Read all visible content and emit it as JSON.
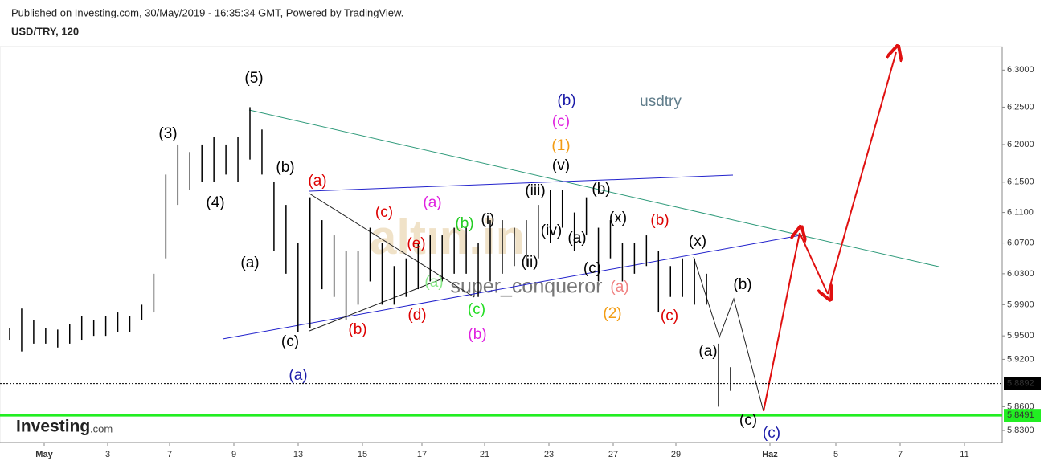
{
  "chart_data": {
    "type": "ohlc",
    "published": "Published on Investing.com, 30/May/2019 - 16:35:34 GMT, Powered by TradingView.",
    "title": "USD/TRY, 120",
    "watermark": "usdtry",
    "author": "super_conqueror",
    "watermark_logo": "altın.in",
    "logo": {
      "brand": "Investing",
      "suffix": ".com"
    },
    "log_scale": true,
    "color": "#000000",
    "categories": [
      "May",
      "3",
      "7",
      "9",
      "13",
      "15",
      "17",
      "21",
      "23",
      "27",
      "29",
      "Haz",
      "5",
      "7",
      "11"
    ],
    "bars": {
      "high": [
        5.96,
        5.985,
        5.97,
        5.96,
        5.958,
        5.965,
        5.975,
        5.97,
        5.975,
        5.98,
        5.975,
        5.99,
        6.03,
        6.16,
        6.2,
        6.19,
        6.2,
        6.21,
        6.2,
        6.21,
        6.25,
        6.22,
        6.15,
        6.12,
        6.07,
        6.13,
        6.1,
        6.08,
        6.06,
        6.06,
        6.09,
        6.07,
        6.04,
        6.05,
        6.07,
        6.08,
        6.08,
        6.09,
        6.09,
        6.07,
        6.1,
        6.1,
        6.09,
        6.1,
        6.12,
        6.14,
        6.14,
        6.11,
        6.13,
        6.09,
        6.1,
        6.07,
        6.07,
        6.08,
        6.06,
        6.04,
        6.05,
        6.05,
        6.03,
        5.94,
        5.91
      ],
      "low": [
        5.945,
        5.93,
        5.94,
        5.94,
        5.935,
        5.94,
        5.945,
        5.95,
        5.95,
        5.955,
        5.955,
        5.97,
        5.98,
        6.05,
        6.12,
        6.14,
        6.15,
        6.15,
        6.16,
        6.15,
        6.18,
        6.16,
        6.06,
        6.03,
        5.955,
        5.96,
        6.01,
        6.0,
        5.97,
        5.99,
        6.02,
        5.99,
        5.99,
        6.0,
        6.01,
        6.02,
        6.02,
        6.03,
        6.03,
        6.0,
        6.02,
        6.03,
        6.04,
        6.04,
        6.05,
        6.07,
        6.09,
        6.06,
        6.08,
        6.02,
        6.05,
        6.02,
        6.03,
        6.04,
        5.98,
        6.0,
        6.0,
        5.99,
        5.99,
        5.86,
        5.88
      ]
    },
    "ylim": [
      5.815,
      6.332
    ],
    "yticks": [
      {
        "value": 6.3,
        "label": "6.3000"
      },
      {
        "value": 6.25,
        "label": "6.2500"
      },
      {
        "value": 6.2,
        "label": "6.2000"
      },
      {
        "value": 6.15,
        "label": "6.1500"
      },
      {
        "value": 6.11,
        "label": "6.1100"
      },
      {
        "value": 6.07,
        "label": "6.0700"
      },
      {
        "value": 6.03,
        "label": "6.0300"
      },
      {
        "value": 5.99,
        "label": "5.9900"
      },
      {
        "value": 5.95,
        "label": "5.9500"
      },
      {
        "value": 5.92,
        "label": "5.9200"
      },
      {
        "value": 5.86,
        "label": "5.8600"
      },
      {
        "value": 5.83,
        "label": "5.8300"
      }
    ],
    "price_lines": [
      {
        "value": 5.8892,
        "color": "#000000"
      },
      {
        "value": 5.8491,
        "color": "#22ee22"
      }
    ],
    "annotations": [
      {
        "text": "(5)",
        "color": "#000000"
      },
      {
        "text": "(3)",
        "color": "#000000"
      },
      {
        "text": "(4)",
        "color": "#000000"
      },
      {
        "text": "(b)",
        "color": "#000000"
      },
      {
        "text": "(a)",
        "color": "#000000"
      },
      {
        "text": "(c)",
        "color": "#000000"
      },
      {
        "text": "(a)",
        "color": "#1a1aa8"
      },
      {
        "text": "(a)",
        "color": "#dd0000"
      },
      {
        "text": "(b)",
        "color": "#dd0000"
      },
      {
        "text": "(c)",
        "color": "#dd0000"
      },
      {
        "text": "(d)",
        "color": "#dd0000"
      },
      {
        "text": "(e)",
        "color": "#dd0000"
      },
      {
        "text": "(a)",
        "color": "#e020e0"
      },
      {
        "text": "(b)",
        "color": "#22cc22"
      },
      {
        "text": "(a)",
        "color": "#88e888"
      },
      {
        "text": "(c)",
        "color": "#22dd22"
      },
      {
        "text": "(b)",
        "color": "#e020e0"
      },
      {
        "text": "(i)",
        "color": "#000000"
      },
      {
        "text": "(ii)",
        "color": "#000000"
      },
      {
        "text": "(iii)",
        "color": "#000000"
      },
      {
        "text": "(iv)",
        "color": "#000000"
      },
      {
        "text": "(v)",
        "color": "#000000"
      },
      {
        "text": "(a)",
        "color": "#000000"
      },
      {
        "text": "(c)",
        "color": "#000000"
      },
      {
        "text": "(b)",
        "color": "#000000"
      },
      {
        "text": "(x)",
        "color": "#000000"
      },
      {
        "text": "(a)",
        "color": "#f08080"
      },
      {
        "text": "(2)",
        "color": "#f39c12"
      },
      {
        "text": "(b)",
        "color": "#dd0000"
      },
      {
        "text": "(c)",
        "color": "#dd0000"
      },
      {
        "text": "(x)",
        "color": "#000000"
      },
      {
        "text": "(b)",
        "color": "#1a1aa8"
      },
      {
        "text": "(c)",
        "color": "#e020e0"
      },
      {
        "text": "(1)",
        "color": "#f39c12"
      },
      {
        "text": "(b)",
        "color": "#000000"
      },
      {
        "text": "(a)",
        "color": "#000000"
      },
      {
        "text": "(c)",
        "color": "#000000"
      },
      {
        "text": "(c)",
        "color": "#1a1aa8"
      }
    ]
  }
}
